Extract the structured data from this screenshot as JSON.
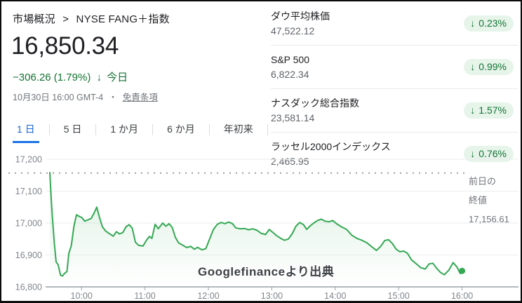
{
  "page": {
    "breadcrumb": {
      "root": "市場概況",
      "separator": ">",
      "current": "NYSE FANG＋指数"
    },
    "quote": {
      "price": "16,850.34",
      "change": "−306.26 (1.79%)",
      "change_arrow": "↓",
      "change_period": "今日",
      "timestamp": "10月30日 16:00 GMT-4",
      "separator": "・",
      "disclaimer": "免責条項"
    },
    "tabs": [
      {
        "label": "1 日",
        "active": true
      },
      {
        "label": "5 日",
        "active": false
      },
      {
        "label": "1 か月",
        "active": false
      },
      {
        "label": "6 か月",
        "active": false
      },
      {
        "label": "年初来",
        "active": false
      }
    ],
    "indices": [
      {
        "name": "ダウ平均株価",
        "value": "47,522.12",
        "arrow": "↓",
        "change": "0.23%"
      },
      {
        "name": "S&P 500",
        "value": "6,822.34",
        "arrow": "↓",
        "change": "0.99%"
      },
      {
        "name": "ナスダック総合指数",
        "value": "23,581.14",
        "arrow": "↓",
        "change": "1.57%"
      },
      {
        "name": "ラッセル2000インデックス",
        "value": "2,465.95",
        "arrow": "↓",
        "change": "0.76%"
      }
    ],
    "prev_close": {
      "label_line1": "前日の",
      "label_line2": "終値",
      "value": "17,156.61"
    },
    "watermark": "Googlefinanceより出典",
    "colors": {
      "accent_green": "#34a853",
      "dark_green": "#137333",
      "badge_bg": "#e6f4ea",
      "active_tab_blue": "#1a73e8",
      "grid": "#e8eaed",
      "axis_text": "#80868b"
    }
  },
  "chart_data": {
    "type": "line",
    "title": "NYSE FANG＋指数 1日チャート",
    "x_ticks": [
      "10:00",
      "11:00",
      "12:00",
      "13:00",
      "14:00",
      "15:00",
      "16:00"
    ],
    "x_tick_hours": [
      10,
      11,
      12,
      13,
      14,
      15,
      16
    ],
    "y_ticks": [
      "17,200",
      "17,100",
      "17,000",
      "16,900",
      "16,800"
    ],
    "y_tick_values": [
      17200,
      17100,
      17000,
      16900,
      16800
    ],
    "ylim": [
      16800,
      17225
    ],
    "xlim_hours": [
      9.5,
      16.9
    ],
    "grid": true,
    "prev_close": 17156.61,
    "legend_position": "none",
    "series": [
      {
        "name": "NYSE FANG＋指数",
        "color": "#34a853",
        "points": [
          [
            9.5,
            17158
          ],
          [
            9.53,
            17050
          ],
          [
            9.57,
            16940
          ],
          [
            9.6,
            16878
          ],
          [
            9.63,
            16870
          ],
          [
            9.67,
            16836
          ],
          [
            9.7,
            16834
          ],
          [
            9.73,
            16842
          ],
          [
            9.77,
            16848
          ],
          [
            9.8,
            16905
          ],
          [
            9.84,
            16930
          ],
          [
            9.88,
            16990
          ],
          [
            9.92,
            17026
          ],
          [
            9.97,
            17020
          ],
          [
            10.0,
            17018
          ],
          [
            10.05,
            17006
          ],
          [
            10.1,
            17010
          ],
          [
            10.15,
            17014
          ],
          [
            10.2,
            17032
          ],
          [
            10.24,
            17050
          ],
          [
            10.28,
            17020
          ],
          [
            10.33,
            16988
          ],
          [
            10.38,
            16975
          ],
          [
            10.43,
            16968
          ],
          [
            10.5,
            16959
          ],
          [
            10.55,
            16973
          ],
          [
            10.6,
            16966
          ],
          [
            10.65,
            16970
          ],
          [
            10.7,
            16988
          ],
          [
            10.75,
            16995
          ],
          [
            10.8,
            16984
          ],
          [
            10.85,
            16940
          ],
          [
            10.9,
            16930
          ],
          [
            10.97,
            16928
          ],
          [
            11.02,
            16945
          ],
          [
            11.07,
            16958
          ],
          [
            11.11,
            16952
          ],
          [
            11.16,
            16996
          ],
          [
            11.21,
            16982
          ],
          [
            11.28,
            17000
          ],
          [
            11.33,
            16990
          ],
          [
            11.38,
            16998
          ],
          [
            11.43,
            16986
          ],
          [
            11.48,
            16955
          ],
          [
            11.53,
            16938
          ],
          [
            11.6,
            16930
          ],
          [
            11.66,
            16923
          ],
          [
            11.72,
            16927
          ],
          [
            11.78,
            16918
          ],
          [
            11.83,
            16924
          ],
          [
            11.9,
            16916
          ],
          [
            11.96,
            16920
          ],
          [
            12.02,
            16950
          ],
          [
            12.08,
            16980
          ],
          [
            12.14,
            16996
          ],
          [
            12.2,
            17002
          ],
          [
            12.26,
            16998
          ],
          [
            12.32,
            17003
          ],
          [
            12.38,
            16998
          ],
          [
            12.43,
            16985
          ],
          [
            12.5,
            16982
          ],
          [
            12.57,
            16983
          ],
          [
            12.63,
            16979
          ],
          [
            12.7,
            16982
          ],
          [
            12.77,
            16977
          ],
          [
            12.83,
            16968
          ],
          [
            12.9,
            16964
          ],
          [
            12.96,
            16980
          ],
          [
            13.02,
            16970
          ],
          [
            13.08,
            16960
          ],
          [
            13.14,
            16952
          ],
          [
            13.2,
            16946
          ],
          [
            13.26,
            16950
          ],
          [
            13.32,
            16966
          ],
          [
            13.38,
            16990
          ],
          [
            13.44,
            17002
          ],
          [
            13.5,
            16995
          ],
          [
            13.55,
            16980
          ],
          [
            13.6,
            16990
          ],
          [
            13.66,
            17000
          ],
          [
            13.72,
            17008
          ],
          [
            13.78,
            17012
          ],
          [
            13.84,
            17006
          ],
          [
            13.9,
            17004
          ],
          [
            13.96,
            17008
          ],
          [
            14.02,
            16998
          ],
          [
            14.1,
            16988
          ],
          [
            14.18,
            16980
          ],
          [
            14.26,
            16962
          ],
          [
            14.34,
            16952
          ],
          [
            14.42,
            16946
          ],
          [
            14.5,
            16938
          ],
          [
            14.58,
            16925
          ],
          [
            14.65,
            16914
          ],
          [
            14.72,
            16928
          ],
          [
            14.78,
            16945
          ],
          [
            14.84,
            16948
          ],
          [
            14.9,
            16936
          ],
          [
            14.96,
            16918
          ],
          [
            15.02,
            16910
          ],
          [
            15.08,
            16912
          ],
          [
            15.14,
            16905
          ],
          [
            15.2,
            16885
          ],
          [
            15.28,
            16872
          ],
          [
            15.35,
            16860
          ],
          [
            15.42,
            16856
          ],
          [
            15.48,
            16872
          ],
          [
            15.54,
            16874
          ],
          [
            15.6,
            16858
          ],
          [
            15.66,
            16845
          ],
          [
            15.72,
            16838
          ],
          [
            15.79,
            16852
          ],
          [
            15.86,
            16876
          ],
          [
            15.92,
            16862
          ],
          [
            15.97,
            16842
          ],
          [
            16.0,
            16850
          ]
        ]
      }
    ]
  }
}
